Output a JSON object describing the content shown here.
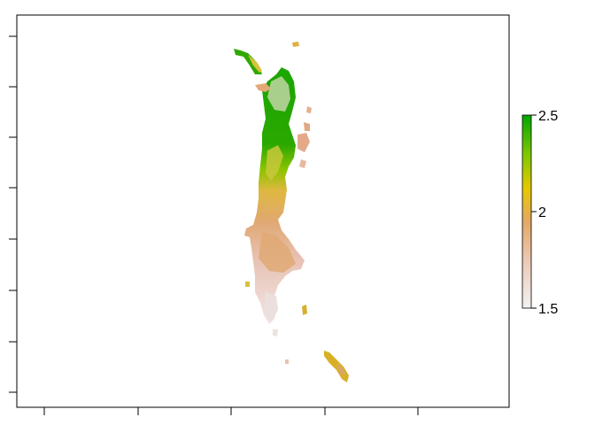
{
  "map": {
    "type": "raster",
    "colormap": "terrain",
    "colors": {
      "low": "#f2f2f2",
      "mid_low": "#e8b79a",
      "mid": "#e6c800",
      "high": "#00a600",
      "frame": "#000000"
    },
    "legend": {
      "position": "right",
      "min": 1.5,
      "max": 2.5,
      "tick_labels": [
        "2.5",
        "2",
        "1.5"
      ],
      "tick_values": [
        2.5,
        2.0,
        1.5
      ]
    },
    "axes": {
      "x_ticks_shown": 5,
      "y_ticks_shown": 8,
      "tick_labels_visible": false
    }
  }
}
